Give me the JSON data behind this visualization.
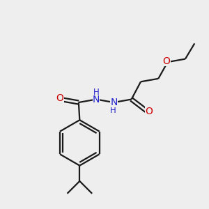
{
  "bg_color": "#eeeeee",
  "bond_color": "#1a1a1a",
  "oxygen_color": "#cc0000",
  "nitrogen_color": "#2222cc",
  "line_width": 1.6,
  "fig_width": 3.0,
  "fig_height": 3.0,
  "dpi": 100,
  "xlim": [
    0,
    10
  ],
  "ylim": [
    0,
    10
  ]
}
